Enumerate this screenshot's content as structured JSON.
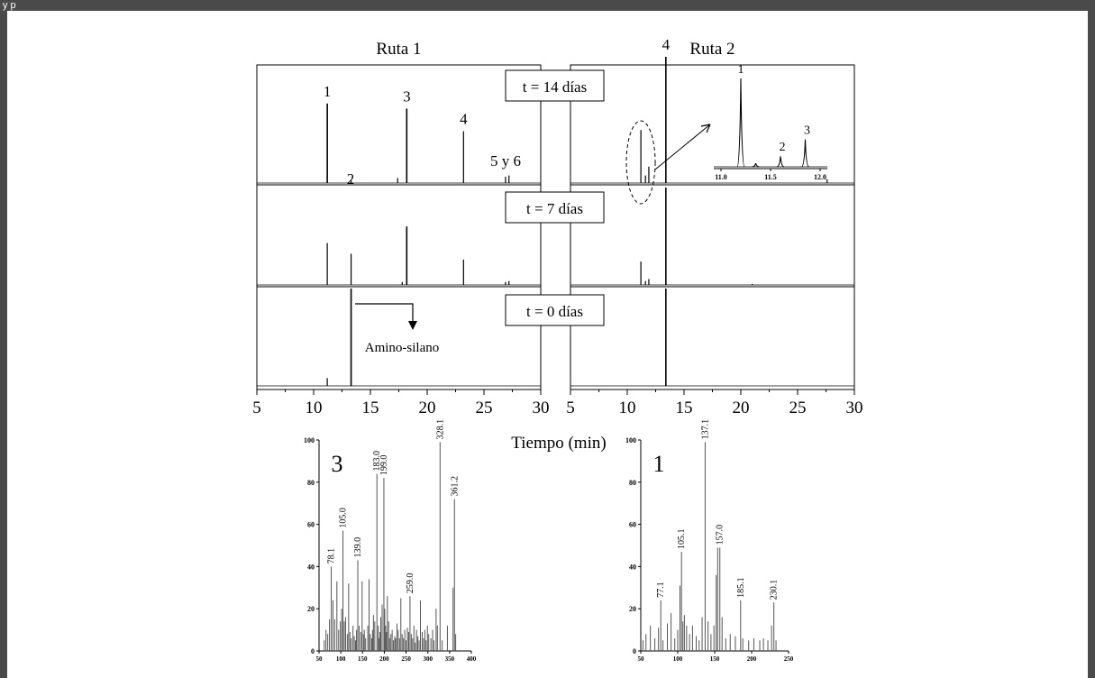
{
  "window": {
    "title_fragment": "y p"
  },
  "colors": {
    "line": "#000000",
    "background": "#ffffff",
    "spectrum": "#555555"
  },
  "chart_data": [
    {
      "type": "line",
      "id": "route1",
      "title": "Ruta 1",
      "xlabel": "Tiempo (min)",
      "xlim": [
        5,
        30
      ],
      "xticks": [
        5,
        10,
        15,
        20,
        25,
        30
      ],
      "panels": [
        {
          "label": "t = 14 días",
          "peaks": [
            {
              "x": 11.2,
              "h": 0.63,
              "label": "1"
            },
            {
              "x": 13.3,
              "h": 0.02,
              "label": "2"
            },
            {
              "x": 17.4,
              "h": 0.04
            },
            {
              "x": 18.2,
              "h": 0.59,
              "label": "3"
            },
            {
              "x": 23.2,
              "h": 0.41,
              "label": "4"
            },
            {
              "x": 26.9,
              "h": 0.05,
              "label": "5 y 6"
            },
            {
              "x": 27.2,
              "h": 0.06
            }
          ]
        },
        {
          "label": "t = 7 días",
          "peaks": [
            {
              "x": 11.2,
              "h": 0.43
            },
            {
              "x": 13.3,
              "h": 0.32
            },
            {
              "x": 17.8,
              "h": 0.03
            },
            {
              "x": 18.2,
              "h": 0.6
            },
            {
              "x": 23.2,
              "h": 0.26
            },
            {
              "x": 26.9,
              "h": 0.03
            },
            {
              "x": 27.2,
              "h": 0.04
            }
          ]
        },
        {
          "label": "t = 0 días",
          "annotation": "Amino-silano",
          "peaks": [
            {
              "x": 11.2,
              "h": 0.08
            },
            {
              "x": 13.3,
              "h": 1.0
            }
          ]
        }
      ]
    },
    {
      "type": "line",
      "id": "route2",
      "title": "Ruta 2",
      "xlabel": "Tiempo (min)",
      "xlim": [
        5,
        30
      ],
      "xticks": [
        5,
        10,
        15,
        20,
        25,
        30
      ],
      "panels": [
        {
          "label": "t = 14 días",
          "peaks": [
            {
              "x": 11.2,
              "h": 0.42
            },
            {
              "x": 11.6,
              "h": 0.06
            },
            {
              "x": 11.9,
              "h": 0.13
            },
            {
              "x": 13.4,
              "h": 1.0,
              "label": "4"
            },
            {
              "x": 27.6,
              "h": 0.03
            }
          ]
        },
        {
          "label": "t = 7 días",
          "peaks": [
            {
              "x": 11.2,
              "h": 0.24
            },
            {
              "x": 11.6,
              "h": 0.04
            },
            {
              "x": 11.9,
              "h": 0.06
            },
            {
              "x": 13.4,
              "h": 1.0
            },
            {
              "x": 21.0,
              "h": 0.01
            }
          ]
        },
        {
          "label": "t = 0 días",
          "peaks": [
            {
              "x": 13.4,
              "h": 1.0
            }
          ]
        }
      ],
      "inset": {
        "xlim": [
          11.0,
          12.0
        ],
        "xticks": [
          "11.0",
          "11.5",
          "12.0"
        ],
        "peaks": [
          {
            "x": 11.2,
            "h": 1.0,
            "label": "1"
          },
          {
            "x": 11.35,
            "h": 0.04
          },
          {
            "x": 11.6,
            "h": 0.12,
            "label": "2"
          },
          {
            "x": 11.85,
            "h": 0.31,
            "label": "3"
          }
        ]
      }
    },
    {
      "type": "bar",
      "id": "ms3",
      "label": "3",
      "xlim": [
        50,
        400
      ],
      "ylim": [
        0,
        100
      ],
      "xticks": [
        50,
        100,
        150,
        200,
        250,
        300,
        350,
        400
      ],
      "yticks": [
        0,
        20,
        40,
        60,
        80,
        100
      ],
      "sticks": [
        [
          62,
          5
        ],
        [
          66,
          10
        ],
        [
          70,
          8
        ],
        [
          74,
          15
        ],
        [
          78.1,
          40
        ],
        [
          82,
          24
        ],
        [
          86,
          15
        ],
        [
          91,
          33
        ],
        [
          95,
          10
        ],
        [
          99,
          14
        ],
        [
          102,
          20
        ],
        [
          105,
          57
        ],
        [
          108,
          14
        ],
        [
          111,
          16
        ],
        [
          115,
          8
        ],
        [
          118,
          32
        ],
        [
          121,
          9
        ],
        [
          124,
          6
        ],
        [
          128,
          12
        ],
        [
          131,
          7
        ],
        [
          134,
          5
        ],
        [
          136,
          10
        ],
        [
          139,
          43
        ],
        [
          142,
          12
        ],
        [
          146,
          9
        ],
        [
          149,
          33
        ],
        [
          152,
          8
        ],
        [
          154,
          10
        ],
        [
          157,
          6
        ],
        [
          162,
          12
        ],
        [
          165,
          34
        ],
        [
          168,
          8
        ],
        [
          171,
          6
        ],
        [
          173,
          10
        ],
        [
          175,
          17
        ],
        [
          178,
          14
        ],
        [
          183,
          84
        ],
        [
          186,
          12
        ],
        [
          188,
          6
        ],
        [
          190,
          9
        ],
        [
          192,
          16
        ],
        [
          195,
          22
        ],
        [
          199,
          82
        ],
        [
          201,
          20
        ],
        [
          203,
          12
        ],
        [
          205,
          9
        ],
        [
          207,
          26
        ],
        [
          210,
          14
        ],
        [
          212,
          6
        ],
        [
          215,
          8
        ],
        [
          218,
          10
        ],
        [
          221,
          5
        ],
        [
          224,
          7
        ],
        [
          226,
          6
        ],
        [
          229,
          13
        ],
        [
          232,
          10
        ],
        [
          235,
          6
        ],
        [
          238,
          25
        ],
        [
          241,
          8
        ],
        [
          244,
          6
        ],
        [
          247,
          10
        ],
        [
          250,
          5
        ],
        [
          253,
          11
        ],
        [
          256,
          9
        ],
        [
          259,
          26
        ],
        [
          262,
          8
        ],
        [
          265,
          6
        ],
        [
          268,
          12
        ],
        [
          271,
          4
        ],
        [
          274,
          10
        ],
        [
          277,
          7
        ],
        [
          280,
          5
        ],
        [
          283,
          24
        ],
        [
          287,
          9
        ],
        [
          290,
          6
        ],
        [
          293,
          10
        ],
        [
          296,
          5
        ],
        [
          299,
          12
        ],
        [
          302,
          8
        ],
        [
          307,
          6
        ],
        [
          311,
          10
        ],
        [
          314,
          5
        ],
        [
          319,
          20
        ],
        [
          322,
          12
        ],
        [
          328.1,
          99
        ],
        [
          333,
          5
        ],
        [
          345,
          12
        ],
        [
          358,
          30
        ],
        [
          361.2,
          72
        ],
        [
          364,
          8
        ]
      ],
      "labels": [
        {
          "x": 78.1,
          "y": 40,
          "text": "78.1"
        },
        {
          "x": 105.0,
          "y": 57,
          "text": "105.0"
        },
        {
          "x": 139.0,
          "y": 43,
          "text": "139.0"
        },
        {
          "x": 183.0,
          "y": 84,
          "text": "183.0"
        },
        {
          "x": 199.0,
          "y": 82,
          "text": "199.0"
        },
        {
          "x": 259.0,
          "y": 26,
          "text": "259.0"
        },
        {
          "x": 328.1,
          "y": 99,
          "text": "328.1"
        },
        {
          "x": 361.2,
          "y": 72,
          "text": "361.2"
        }
      ]
    },
    {
      "type": "bar",
      "id": "ms1",
      "label": "1",
      "xlim": [
        50,
        250
      ],
      "ylim": [
        0,
        100
      ],
      "xticks": [
        50,
        100,
        150,
        200,
        250
      ],
      "yticks": [
        0,
        20,
        40,
        60,
        80,
        100
      ],
      "sticks": [
        [
          53,
          5
        ],
        [
          57,
          8
        ],
        [
          63,
          12
        ],
        [
          69,
          6
        ],
        [
          74,
          11
        ],
        [
          77.1,
          24
        ],
        [
          80,
          5
        ],
        [
          86,
          13
        ],
        [
          91,
          18
        ],
        [
          96,
          6
        ],
        [
          100,
          10
        ],
        [
          103,
          31
        ],
        [
          105.1,
          47
        ],
        [
          107,
          14
        ],
        [
          109,
          17
        ],
        [
          112,
          12
        ],
        [
          116,
          8
        ],
        [
          120,
          12
        ],
        [
          125,
          7
        ],
        [
          129,
          5
        ],
        [
          133,
          16
        ],
        [
          137.1,
          99
        ],
        [
          141,
          14
        ],
        [
          145,
          8
        ],
        [
          149,
          12
        ],
        [
          152,
          36
        ],
        [
          154,
          49
        ],
        [
          157.0,
          49
        ],
        [
          160,
          16
        ],
        [
          165,
          6
        ],
        [
          171,
          8
        ],
        [
          178,
          7
        ],
        [
          185.1,
          24
        ],
        [
          188,
          6
        ],
        [
          196,
          5
        ],
        [
          203,
          6
        ],
        [
          211,
          5
        ],
        [
          216,
          6
        ],
        [
          222,
          5
        ],
        [
          227,
          12
        ],
        [
          230.1,
          23
        ],
        [
          233,
          5
        ]
      ],
      "labels": [
        {
          "x": 77.1,
          "y": 24,
          "text": "77.1"
        },
        {
          "x": 105.1,
          "y": 47,
          "text": "105.1"
        },
        {
          "x": 137.1,
          "y": 99,
          "text": "137.1"
        },
        {
          "x": 157.0,
          "y": 49,
          "text": "157.0"
        },
        {
          "x": 185.1,
          "y": 24,
          "text": "185.1"
        },
        {
          "x": 230.1,
          "y": 23,
          "text": "230.1"
        }
      ]
    }
  ]
}
